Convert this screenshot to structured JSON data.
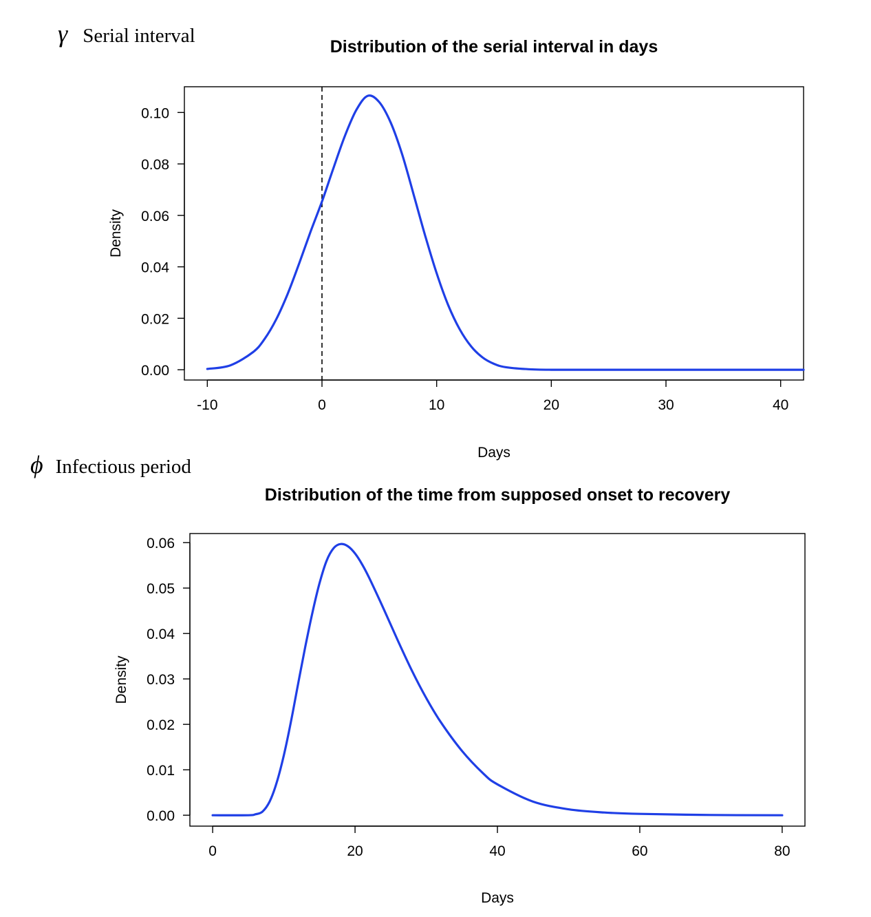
{
  "panels": [
    {
      "symbol": "γ",
      "label": "Serial interval"
    },
    {
      "symbol": "ϕ",
      "label": "Infectious period"
    }
  ],
  "chart_data": [
    {
      "type": "line",
      "title": "Distribution of the serial interval in days",
      "xlabel": "Days",
      "ylabel": "Density",
      "xlim": [
        -12,
        42
      ],
      "ylim": [
        -0.004,
        0.11
      ],
      "xticks": [
        -10,
        0,
        10,
        20,
        30,
        40
      ],
      "yticks": [
        "0.00",
        "0.02",
        "0.04",
        "0.06",
        "0.08",
        "0.10"
      ],
      "reference_line": {
        "x": 0,
        "style": "dashed"
      },
      "series": [
        {
          "color": "#1f3fe6",
          "x": [
            -10,
            -8,
            -6,
            -5,
            -4,
            -3,
            -2,
            -1,
            0,
            1,
            2,
            3,
            4,
            5,
            6,
            7,
            8,
            9,
            10,
            11,
            12,
            13,
            14,
            15,
            16,
            18,
            20,
            25,
            30,
            35,
            42
          ],
          "y": [
            0.0003,
            0.0017,
            0.0069,
            0.012,
            0.0195,
            0.0294,
            0.0412,
            0.0536,
            0.0654,
            0.0784,
            0.0909,
            0.101,
            0.1065,
            0.104,
            0.096,
            0.0836,
            0.068,
            0.0521,
            0.0375,
            0.0252,
            0.0158,
            0.0091,
            0.0048,
            0.0023,
            0.001,
            0.0002,
            0.0,
            0.0,
            0.0,
            0.0,
            0.0
          ]
        }
      ]
    },
    {
      "type": "line",
      "title": "Distribution of the time from supposed onset to recovery",
      "xlabel": "Days",
      "ylabel": "Density",
      "xlim": [
        -3.2,
        83.2
      ],
      "ylim": [
        -0.0024,
        0.062
      ],
      "xticks": [
        0,
        20,
        40,
        60,
        80
      ],
      "yticks": [
        "0.00",
        "0.01",
        "0.02",
        "0.03",
        "0.04",
        "0.05",
        "0.06"
      ],
      "series": [
        {
          "color": "#1f3fe6",
          "x": [
            0,
            5,
            6,
            7,
            8,
            9,
            10,
            11,
            12,
            13,
            14,
            15,
            16,
            17,
            18,
            19,
            20,
            21,
            22,
            24,
            26,
            28,
            30,
            32,
            35,
            38,
            40,
            45,
            50,
            55,
            60,
            70,
            80
          ],
          "y": [
            0.0,
            0.0,
            0.0002,
            0.0008,
            0.003,
            0.0072,
            0.0132,
            0.0206,
            0.0289,
            0.037,
            0.0445,
            0.051,
            0.056,
            0.0588,
            0.0597,
            0.0592,
            0.0576,
            0.0552,
            0.0522,
            0.0455,
            0.0385,
            0.0318,
            0.0258,
            0.0206,
            0.0142,
            0.0092,
            0.0068,
            0.003,
            0.0013,
            0.0006,
            0.0003,
            5e-05,
            0.0
          ]
        }
      ]
    }
  ]
}
